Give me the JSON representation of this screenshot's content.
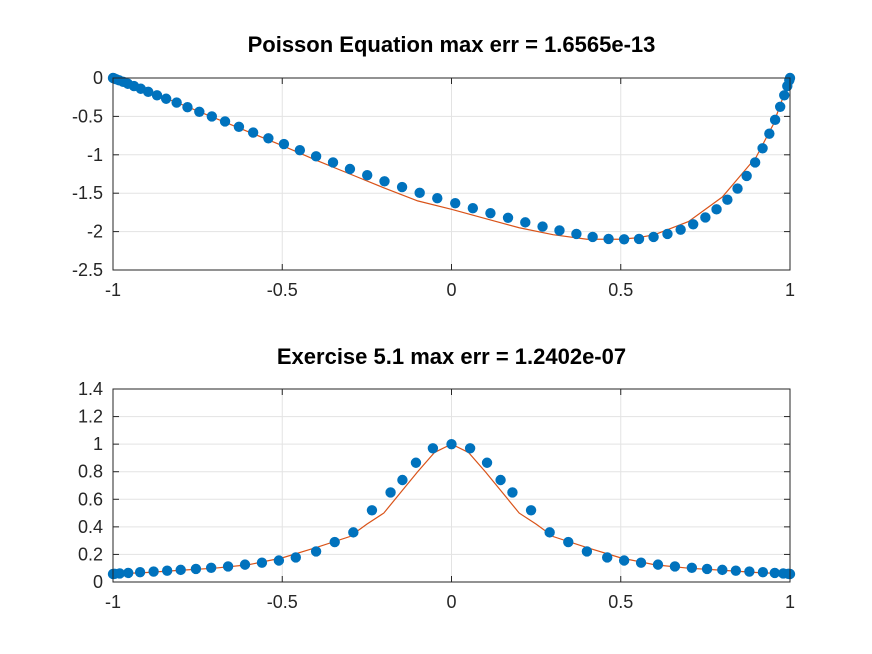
{
  "chart_data": [
    {
      "type": "line",
      "title": "Poisson Equation max err = 1.6565e-13",
      "xlabel": "",
      "ylabel": "",
      "xlim": [
        -1,
        1
      ],
      "ylim": [
        -2.5,
        0
      ],
      "grid": true,
      "xticks": [
        -1,
        -0.5,
        0,
        0.5,
        1
      ],
      "xtick_labels": [
        "-1",
        "-0.5",
        "0",
        "0.5",
        "1"
      ],
      "yticks": [
        0,
        -0.5,
        -1,
        -1.5,
        -2,
        -2.5
      ],
      "ytick_labels": [
        "0",
        "-0.5",
        "-1",
        "-1.5",
        "-2",
        "-2.5"
      ],
      "line_color": "#d95319",
      "marker_color": "#0072bd",
      "series": [
        {
          "style": "line",
          "x": [
            -1,
            -0.9,
            -0.8,
            -0.7,
            -0.6,
            -0.5,
            -0.4,
            -0.3,
            -0.2,
            -0.1,
            0,
            0.1,
            0.2,
            0.3,
            0.4,
            0.5,
            0.55,
            0.6,
            0.7,
            0.8,
            0.9,
            0.95,
            1
          ],
          "y": [
            0,
            -0.17,
            -0.34,
            -0.52,
            -0.7,
            -0.88,
            -1.07,
            -1.25,
            -1.43,
            -1.6,
            -1.71,
            -1.83,
            -1.95,
            -2.04,
            -2.1,
            -2.1,
            -2.08,
            -2.04,
            -1.87,
            -1.55,
            -1.03,
            -0.61,
            0
          ]
        },
        {
          "style": "markers",
          "x": [
            -1,
            -0.997,
            -0.991,
            -0.982,
            -0.97,
            -0.956,
            -0.938,
            -0.918,
            -0.896,
            -0.87,
            -0.843,
            -0.812,
            -0.78,
            -0.745,
            -0.708,
            -0.669,
            -0.628,
            -0.586,
            -0.541,
            -0.495,
            -0.448,
            -0.4,
            -0.35,
            -0.3,
            -0.249,
            -0.198,
            -0.146,
            -0.094,
            -0.042,
            0.011,
            0.063,
            0.115,
            0.167,
            0.218,
            0.269,
            0.319,
            0.369,
            0.417,
            0.464,
            0.51,
            0.554,
            0.597,
            0.638,
            0.677,
            0.714,
            0.75,
            0.783,
            0.815,
            0.845,
            0.872,
            0.897,
            0.919,
            0.939,
            0.956,
            0.971,
            0.983,
            0.992,
            0.998,
            1
          ],
          "y": [
            0,
            -0.005,
            -0.015,
            -0.03,
            -0.05,
            -0.075,
            -0.105,
            -0.14,
            -0.18,
            -0.225,
            -0.27,
            -0.32,
            -0.38,
            -0.44,
            -0.5,
            -0.565,
            -0.635,
            -0.71,
            -0.785,
            -0.86,
            -0.94,
            -1.02,
            -1.1,
            -1.185,
            -1.265,
            -1.345,
            -1.42,
            -1.495,
            -1.565,
            -1.63,
            -1.695,
            -1.76,
            -1.82,
            -1.88,
            -1.935,
            -1.985,
            -2.03,
            -2.07,
            -2.095,
            -2.1,
            -2.095,
            -2.07,
            -2.03,
            -1.975,
            -1.905,
            -1.815,
            -1.71,
            -1.585,
            -1.44,
            -1.275,
            -1.1,
            -0.915,
            -0.725,
            -0.545,
            -0.375,
            -0.225,
            -0.105,
            -0.03,
            0
          ]
        }
      ]
    },
    {
      "type": "line",
      "title": "Exercise 5.1 max err = 1.2402e-07",
      "xlabel": "",
      "ylabel": "",
      "xlim": [
        -1,
        1
      ],
      "ylim": [
        0,
        1.4
      ],
      "grid": true,
      "xticks": [
        -1,
        -0.5,
        0,
        0.5,
        1
      ],
      "xtick_labels": [
        "-1",
        "-0.5",
        "0",
        "0.5",
        "1"
      ],
      "yticks": [
        0,
        0.2,
        0.4,
        0.6,
        0.8,
        1,
        1.2,
        1.4
      ],
      "ytick_labels": [
        "0",
        "0.2",
        "0.4",
        "0.6",
        "0.8",
        "1",
        "1.2",
        "1.4"
      ],
      "line_color": "#d95319",
      "marker_color": "#0072bd",
      "series": [
        {
          "style": "line",
          "x": [
            -1,
            -0.9,
            -0.8,
            -0.7,
            -0.6,
            -0.5,
            -0.4,
            -0.3,
            -0.25,
            -0.2,
            -0.15,
            -0.1,
            -0.05,
            0,
            0.05,
            0.1,
            0.15,
            0.2,
            0.25,
            0.3,
            0.4,
            0.5,
            0.6,
            0.7,
            0.8,
            0.9,
            1
          ],
          "y": [
            0.058,
            0.069,
            0.085,
            0.1,
            0.125,
            0.175,
            0.25,
            0.33,
            0.42,
            0.5,
            0.65,
            0.8,
            0.94,
            1,
            0.94,
            0.8,
            0.65,
            0.5,
            0.42,
            0.33,
            0.25,
            0.175,
            0.125,
            0.1,
            0.085,
            0.069,
            0.058
          ]
        },
        {
          "style": "markers",
          "x": [
            -1,
            -0.995,
            -0.98,
            -0.955,
            -0.92,
            -0.88,
            -0.84,
            -0.8,
            -0.755,
            -0.71,
            -0.66,
            -0.61,
            -0.56,
            -0.51,
            -0.46,
            -0.4,
            -0.345,
            -0.29,
            -0.235,
            -0.18,
            -0.145,
            -0.105,
            -0.055,
            0,
            0.055,
            0.105,
            0.145,
            0.18,
            0.235,
            0.29,
            0.345,
            0.4,
            0.46,
            0.51,
            0.56,
            0.61,
            0.66,
            0.71,
            0.755,
            0.8,
            0.84,
            0.88,
            0.92,
            0.955,
            0.98,
            0.995,
            1
          ],
          "y": [
            0.058,
            0.059,
            0.062,
            0.066,
            0.071,
            0.076,
            0.082,
            0.088,
            0.095,
            0.103,
            0.113,
            0.126,
            0.14,
            0.156,
            0.178,
            0.222,
            0.29,
            0.36,
            0.52,
            0.65,
            0.74,
            0.865,
            0.97,
            1,
            0.97,
            0.865,
            0.74,
            0.65,
            0.52,
            0.36,
            0.29,
            0.222,
            0.178,
            0.156,
            0.14,
            0.126,
            0.113,
            0.103,
            0.095,
            0.088,
            0.082,
            0.076,
            0.071,
            0.066,
            0.062,
            0.059,
            0.058
          ]
        }
      ]
    }
  ]
}
